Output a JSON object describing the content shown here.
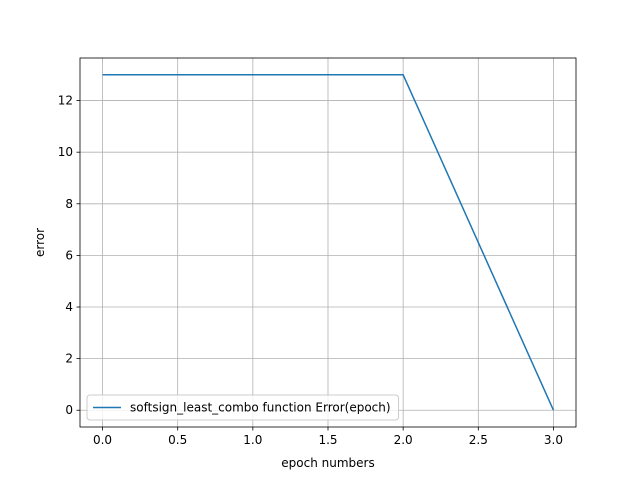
{
  "chart_data": {
    "type": "line",
    "title": "",
    "xlabel": "epoch numbers",
    "ylabel": "error",
    "xlim": [
      -0.15,
      3.15
    ],
    "ylim": [
      -0.65,
      13.65
    ],
    "xticks": [
      0.0,
      0.5,
      1.0,
      1.5,
      2.0,
      2.5,
      3.0
    ],
    "xtick_labels": [
      "0.0",
      "0.5",
      "1.0",
      "1.5",
      "2.0",
      "2.5",
      "3.0"
    ],
    "yticks": [
      0,
      2,
      4,
      6,
      8,
      10,
      12
    ],
    "ytick_labels": [
      "0",
      "2",
      "4",
      "6",
      "8",
      "10",
      "12"
    ],
    "grid": true,
    "legend_position": "lower-left",
    "series": [
      {
        "name": "softsign_least_combo function Error(epoch)",
        "color": "#1f77b4",
        "x": [
          0,
          1,
          2,
          3
        ],
        "y": [
          13,
          13,
          13,
          0
        ]
      }
    ]
  }
}
